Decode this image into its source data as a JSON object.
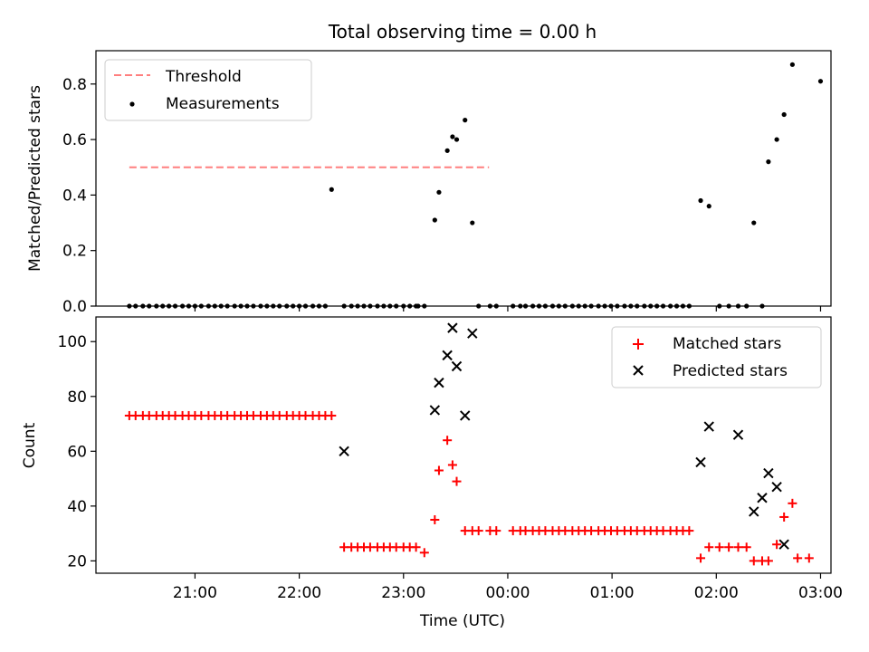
{
  "chart_data": [
    {
      "type": "scatter",
      "title": "Total observing time = 0.00 h",
      "xlabel": "",
      "ylabel": "Matched/Predicted stars",
      "ylim": [
        0,
        0.92
      ],
      "yticks": [
        0.0,
        0.2,
        0.4,
        0.6,
        0.8
      ],
      "ytick_labels": [
        "0.0",
        "0.2",
        "0.4",
        "0.6",
        "0.8"
      ],
      "x_unit": "hours since 21:00 UTC",
      "xlim": [
        -0.95,
        6.1
      ],
      "legend_position": "upper-left",
      "threshold": {
        "name": "Threshold",
        "value": 0.5,
        "x_range": [
          -0.63,
          2.82
        ],
        "color": "#ff7f7f"
      },
      "series": [
        {
          "name": "Measurements",
          "color": "#000000",
          "x": [
            -0.63,
            -0.57,
            -0.5,
            -0.44,
            -0.37,
            -0.31,
            -0.25,
            -0.19,
            -0.12,
            -0.06,
            0.0,
            0.06,
            0.13,
            0.19,
            0.25,
            0.31,
            0.38,
            0.44,
            0.5,
            0.56,
            0.63,
            0.69,
            0.75,
            0.81,
            0.88,
            0.94,
            1.0,
            1.06,
            1.13,
            1.19,
            1.25,
            1.31,
            1.43,
            1.5,
            1.56,
            1.62,
            1.68,
            1.75,
            1.81,
            1.87,
            1.93,
            2.0,
            2.06,
            2.12,
            2.14,
            2.2,
            2.3,
            2.34,
            2.42,
            2.47,
            2.51,
            2.59,
            2.66,
            2.72,
            2.83,
            2.89,
            3.05,
            3.12,
            3.17,
            3.24,
            3.3,
            3.36,
            3.43,
            3.49,
            3.55,
            3.62,
            3.68,
            3.74,
            3.8,
            3.87,
            3.93,
            3.99,
            4.05,
            4.12,
            4.18,
            4.24,
            4.31,
            4.37,
            4.43,
            4.49,
            4.56,
            4.62,
            4.68,
            4.74,
            4.85,
            4.93,
            5.03,
            5.12,
            5.21,
            5.29,
            5.36,
            5.44,
            5.5,
            5.58,
            5.65,
            5.73,
            6.0
          ],
          "y": [
            0,
            0,
            0,
            0,
            0,
            0,
            0,
            0,
            0,
            0,
            0,
            0,
            0,
            0,
            0,
            0,
            0,
            0,
            0,
            0,
            0,
            0,
            0,
            0,
            0,
            0,
            0,
            0,
            0,
            0,
            0,
            0.42,
            0,
            0,
            0,
            0,
            0,
            0,
            0,
            0,
            0,
            0,
            0,
            0,
            0,
            0,
            0.31,
            0.41,
            0.56,
            0.61,
            0.6,
            0.67,
            0.3,
            0,
            0,
            0,
            0,
            0,
            0,
            0,
            0,
            0,
            0,
            0,
            0,
            0,
            0,
            0,
            0,
            0,
            0,
            0,
            0,
            0,
            0,
            0,
            0,
            0,
            0,
            0,
            0,
            0,
            0,
            0,
            0.38,
            0.36,
            0,
            0,
            0,
            0,
            0.3,
            0,
            0.52,
            0.6,
            0.69,
            0.87,
            0.81
          ]
        }
      ]
    },
    {
      "type": "scatter",
      "title": "",
      "xlabel": "Time (UTC)",
      "ylabel": "Count",
      "ylim": [
        15.5,
        109
      ],
      "yticks": [
        20,
        40,
        60,
        80,
        100
      ],
      "ytick_labels": [
        "20",
        "40",
        "60",
        "80",
        "100"
      ],
      "x_unit": "hours since 21:00 UTC",
      "xlim": [
        -0.95,
        6.1
      ],
      "xticks": [
        0,
        1,
        2,
        3,
        4,
        5,
        6
      ],
      "xtick_labels": [
        "21:00",
        "22:00",
        "23:00",
        "00:00",
        "01:00",
        "02:00",
        "03:00"
      ],
      "legend_position": "upper-right",
      "series": [
        {
          "name": "Matched stars",
          "marker": "plus",
          "color": "#ff0000",
          "x": [
            -0.63,
            -0.57,
            -0.5,
            -0.44,
            -0.37,
            -0.31,
            -0.25,
            -0.19,
            -0.12,
            -0.06,
            0.0,
            0.06,
            0.13,
            0.19,
            0.25,
            0.31,
            0.38,
            0.44,
            0.5,
            0.56,
            0.63,
            0.69,
            0.75,
            0.81,
            0.88,
            0.94,
            1.0,
            1.06,
            1.13,
            1.19,
            1.25,
            1.31,
            1.43,
            1.5,
            1.56,
            1.62,
            1.68,
            1.75,
            1.81,
            1.87,
            1.93,
            2.0,
            2.06,
            2.12,
            2.2,
            2.3,
            2.34,
            2.42,
            2.47,
            2.51,
            2.59,
            2.66,
            2.72,
            2.83,
            2.89,
            3.05,
            3.12,
            3.17,
            3.24,
            3.3,
            3.36,
            3.43,
            3.49,
            3.55,
            3.62,
            3.68,
            3.74,
            3.8,
            3.87,
            3.93,
            3.99,
            4.05,
            4.12,
            4.18,
            4.24,
            4.31,
            4.37,
            4.43,
            4.49,
            4.56,
            4.62,
            4.68,
            4.74,
            4.85,
            4.93,
            5.03,
            5.12,
            5.21,
            5.29,
            5.36,
            5.44,
            5.5,
            5.58,
            5.65,
            5.73,
            5.78,
            5.89
          ],
          "y": [
            73,
            73,
            73,
            73,
            73,
            73,
            73,
            73,
            73,
            73,
            73,
            73,
            73,
            73,
            73,
            73,
            73,
            73,
            73,
            73,
            73,
            73,
            73,
            73,
            73,
            73,
            73,
            73,
            73,
            73,
            73,
            73,
            25,
            25,
            25,
            25,
            25,
            25,
            25,
            25,
            25,
            25,
            25,
            25,
            23,
            35,
            53,
            64,
            55,
            49,
            31,
            31,
            31,
            31,
            31,
            31,
            31,
            31,
            31,
            31,
            31,
            31,
            31,
            31,
            31,
            31,
            31,
            31,
            31,
            31,
            31,
            31,
            31,
            31,
            31,
            31,
            31,
            31,
            31,
            31,
            31,
            31,
            31,
            21,
            25,
            25,
            25,
            25,
            25,
            20,
            20,
            20,
            26,
            36,
            41,
            21,
            21
          ]
        },
        {
          "name": "Predicted stars",
          "marker": "x",
          "color": "#000000",
          "x": [
            1.43,
            2.3,
            2.34,
            2.42,
            2.47,
            2.51,
            2.59,
            2.66,
            4.85,
            4.93,
            5.21,
            5.36,
            5.44,
            5.5,
            5.58,
            5.65
          ],
          "y": [
            60,
            75,
            85,
            95,
            105,
            91,
            73,
            103,
            56,
            69,
            66,
            38,
            43,
            52,
            47,
            26
          ]
        }
      ]
    }
  ]
}
